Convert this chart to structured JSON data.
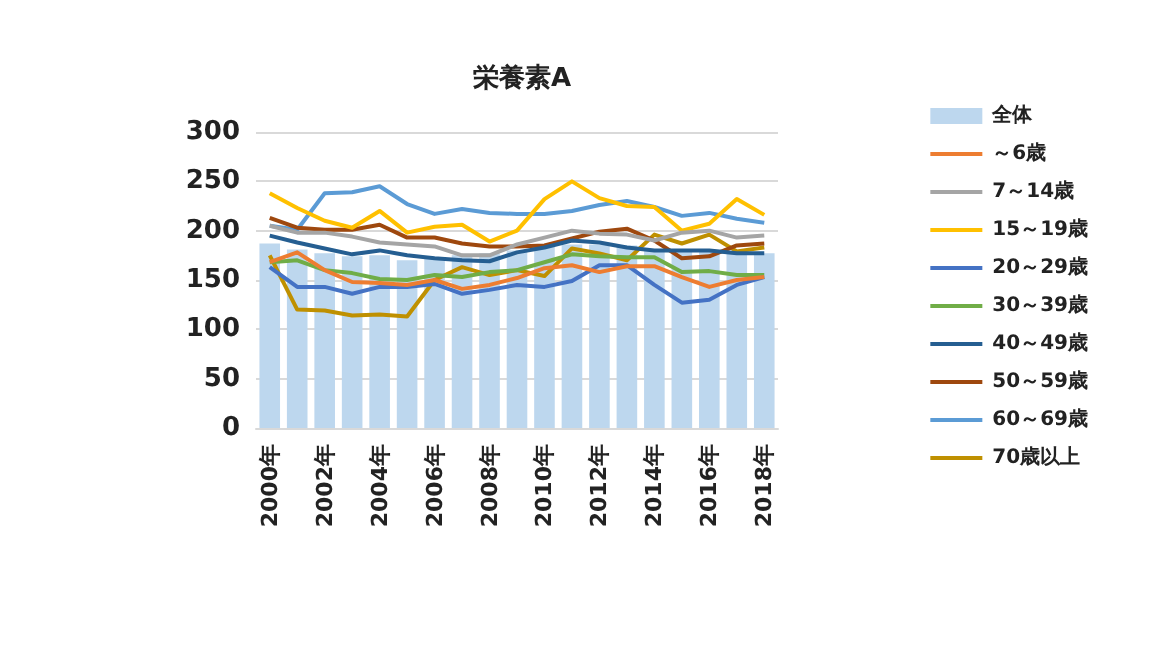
{
  "chart_data": {
    "type": "bar",
    "title": "栄養素A",
    "categories": [
      "2000年",
      null,
      "2002年",
      null,
      "2004年",
      null,
      "2006年",
      null,
      "2008年",
      null,
      "2010年",
      null,
      "2012年",
      null,
      "2014年",
      null,
      "2016年",
      null,
      "2018年"
    ],
    "series": [
      {
        "name": "全体",
        "color": "#bdd7ee",
        "values": [
          187,
          181,
          177,
          174,
          175,
          170,
          172,
          175,
          177,
          180,
          185,
          186,
          186,
          185,
          180,
          180,
          180,
          179,
          177
        ]
      },
      {
        "name": "～6歳",
        "type": "line",
        "color": "#ed7d31",
        "values": [
          168,
          178,
          160,
          148,
          147,
          145,
          150,
          141,
          145,
          152,
          162,
          165,
          158,
          164,
          164,
          153,
          143,
          150,
          153
        ]
      },
      {
        "name": "7～14歳",
        "type": "line",
        "color": "#a5a5a5",
        "values": [
          205,
          198,
          198,
          194,
          188,
          186,
          184,
          175,
          175,
          186,
          193,
          200,
          197,
          196,
          190,
          198,
          200,
          193,
          195
        ]
      },
      {
        "name": "15～19歳",
        "type": "line",
        "color": "#ffc000",
        "values": [
          238,
          223,
          210,
          203,
          220,
          198,
          204,
          206,
          189,
          200,
          232,
          250,
          233,
          225,
          224,
          200,
          207,
          232,
          216
        ]
      },
      {
        "name": "20～29歳",
        "type": "line",
        "color": "#4472c4",
        "values": [
          163,
          143,
          143,
          136,
          143,
          143,
          146,
          136,
          140,
          145,
          143,
          149,
          165,
          165,
          145,
          127,
          130,
          145,
          153
        ]
      },
      {
        "name": "30～39歳",
        "type": "line",
        "color": "#70ad47",
        "values": [
          168,
          170,
          160,
          157,
          151,
          150,
          155,
          153,
          158,
          160,
          168,
          176,
          174,
          173,
          173,
          158,
          159,
          155,
          155
        ]
      },
      {
        "name": "40～49歳",
        "type": "line",
        "color": "#255e91",
        "values": [
          195,
          188,
          182,
          176,
          180,
          175,
          172,
          170,
          169,
          178,
          183,
          190,
          188,
          183,
          180,
          180,
          180,
          177,
          177
        ]
      },
      {
        "name": "50～59歳",
        "type": "line",
        "color": "#9e480e",
        "values": [
          213,
          203,
          201,
          201,
          206,
          193,
          193,
          187,
          184,
          184,
          185,
          192,
          199,
          202,
          190,
          172,
          174,
          185,
          187
        ]
      },
      {
        "name": "60～69歳",
        "type": "line",
        "color": "#5b9bd5",
        "values": [
          205,
          201,
          238,
          239,
          245,
          227,
          217,
          222,
          218,
          217,
          217,
          220,
          226,
          230,
          224,
          215,
          218,
          212,
          208
        ]
      },
      {
        "name": "70歳以上",
        "type": "line",
        "color": "#bf9000",
        "values": [
          175,
          120,
          119,
          114,
          115,
          113,
          150,
          163,
          155,
          160,
          154,
          182,
          177,
          170,
          196,
          187,
          196,
          179,
          183
        ]
      }
    ],
    "ylim": [
      0,
      300
    ],
    "yticks": [
      0,
      50,
      100,
      150,
      200,
      250,
      300
    ],
    "grid": "y",
    "legend": "right",
    "marker": "none"
  }
}
